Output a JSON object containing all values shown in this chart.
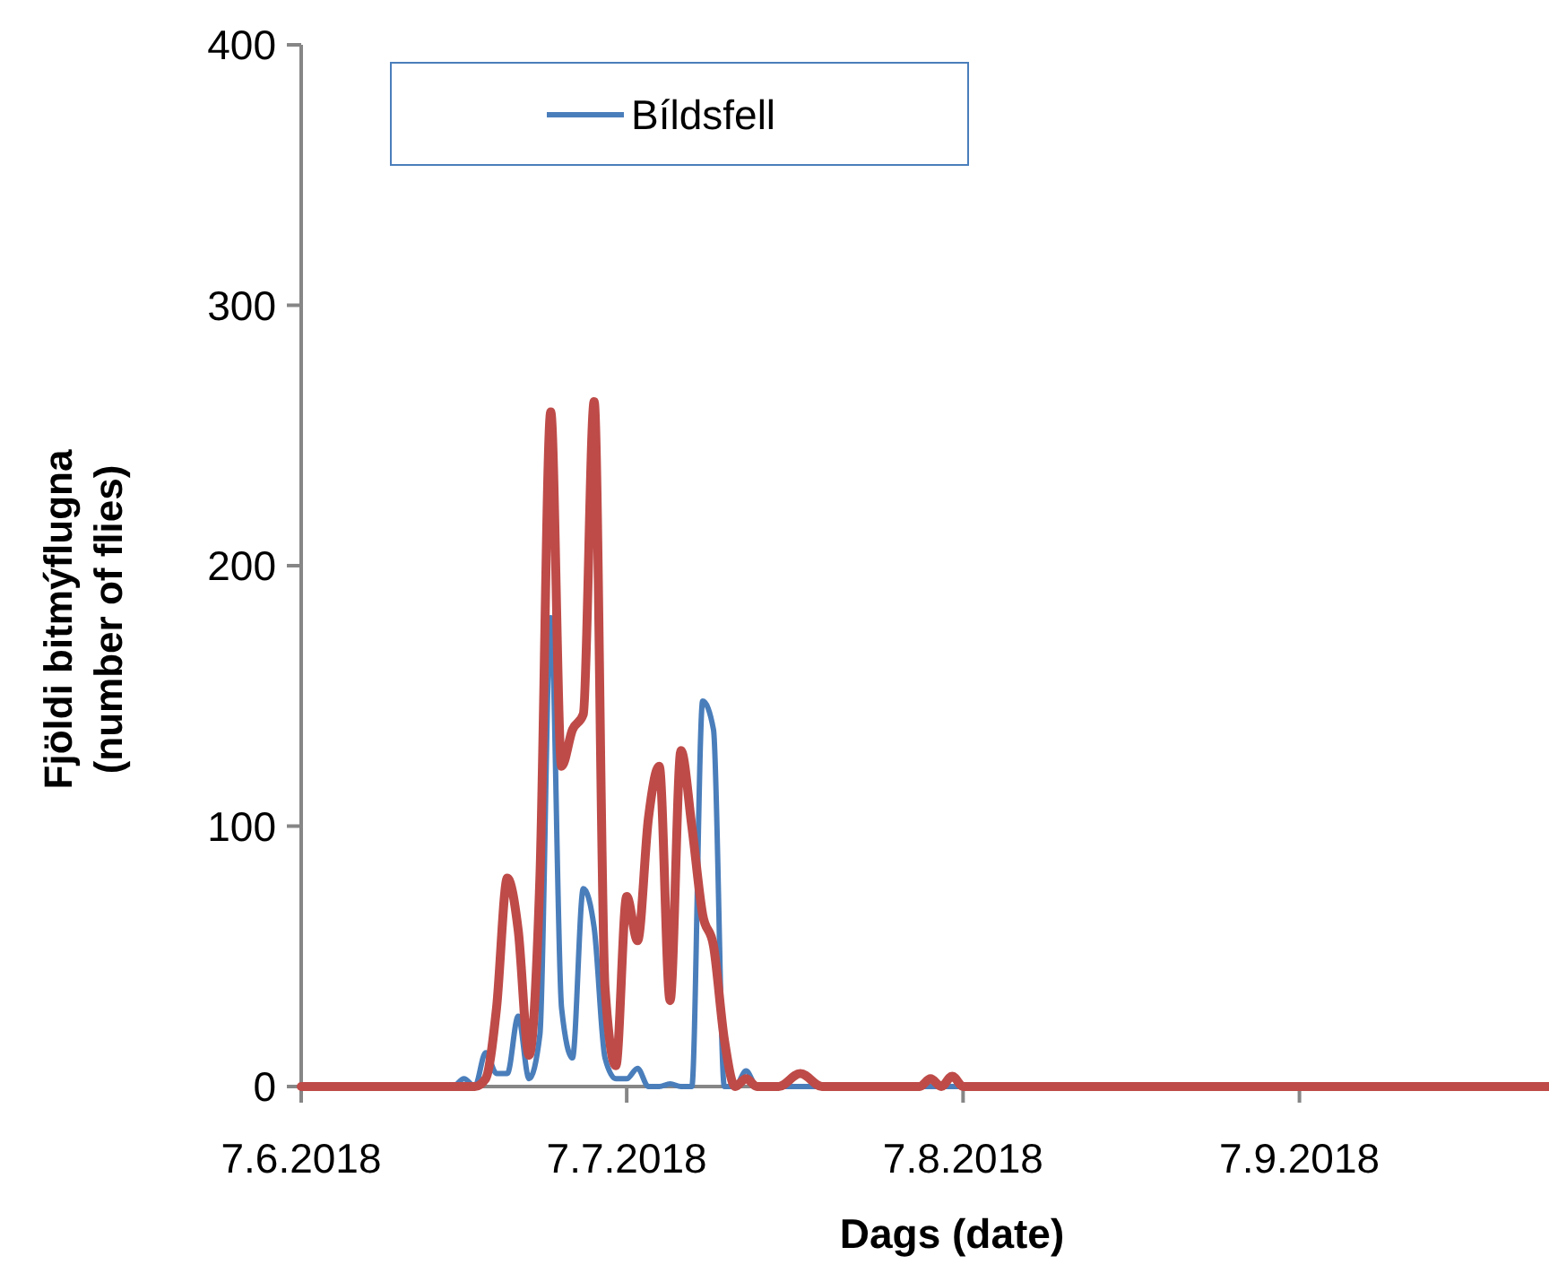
{
  "chart_data": {
    "type": "line",
    "xlabel": "Dags (date)",
    "ylabel": "Fjöldi bitmýflugna\n(number of flies)",
    "xlim": [
      "2018-06-07",
      "2018-09-30"
    ],
    "xticks": [
      {
        "value": "2018-06-07",
        "label": "7.6.2018"
      },
      {
        "value": "2018-07-07",
        "label": "7.7.2018"
      },
      {
        "value": "2018-08-07",
        "label": "7.8.2018"
      },
      {
        "value": "2018-09-07",
        "label": "7.9.2018"
      }
    ],
    "ylim": [
      0,
      400
    ],
    "yticks": [
      0,
      100,
      200,
      300,
      400
    ],
    "grid": false,
    "legend": "top left",
    "series": [
      {
        "name": "Bíldsfell",
        "color": "#4a7ebb",
        "x": [
          "2018-06-07",
          "2018-06-21",
          "2018-06-22",
          "2018-06-23",
          "2018-06-24",
          "2018-06-25",
          "2018-06-26",
          "2018-06-27",
          "2018-06-28",
          "2018-06-29",
          "2018-06-30",
          "2018-07-01",
          "2018-07-02",
          "2018-07-03",
          "2018-07-04",
          "2018-07-05",
          "2018-07-06",
          "2018-07-07",
          "2018-07-08",
          "2018-07-09",
          "2018-07-10",
          "2018-07-11",
          "2018-07-12",
          "2018-07-13",
          "2018-07-14",
          "2018-07-15",
          "2018-07-16",
          "2018-07-17",
          "2018-07-18",
          "2018-07-19",
          "2018-09-30"
        ],
        "values": [
          0,
          0,
          3,
          0,
          13,
          5,
          5,
          27,
          3,
          20,
          180,
          30,
          11,
          76,
          61,
          11,
          3,
          3,
          7,
          0,
          0,
          1,
          0,
          0,
          148,
          137,
          0,
          0,
          6,
          0,
          0
        ]
      },
      {
        "color": "#be4b48",
        "x": [
          "2018-06-07",
          "2018-06-23",
          "2018-06-24",
          "2018-06-25",
          "2018-06-26",
          "2018-06-27",
          "2018-06-28",
          "2018-06-29",
          "2018-06-30",
          "2018-07-01",
          "2018-07-02",
          "2018-07-03",
          "2018-07-04",
          "2018-07-05",
          "2018-07-06",
          "2018-07-07",
          "2018-07-08",
          "2018-07-09",
          "2018-07-10",
          "2018-07-11",
          "2018-07-12",
          "2018-07-13",
          "2018-07-14",
          "2018-07-15",
          "2018-07-16",
          "2018-07-17",
          "2018-07-18",
          "2018-07-19",
          "2018-07-21",
          "2018-07-23",
          "2018-07-25",
          "2018-08-03",
          "2018-08-04",
          "2018-08-05",
          "2018-08-06",
          "2018-08-07",
          "2018-09-30"
        ],
        "values": [
          0,
          0,
          3,
          30,
          80,
          60,
          12,
          80,
          259,
          123,
          137,
          143,
          263,
          38,
          8,
          73,
          56,
          103,
          123,
          33,
          129,
          100,
          66,
          54,
          18,
          0,
          3,
          0,
          0,
          5,
          0,
          0,
          3,
          0,
          4,
          0,
          0
        ]
      }
    ]
  }
}
